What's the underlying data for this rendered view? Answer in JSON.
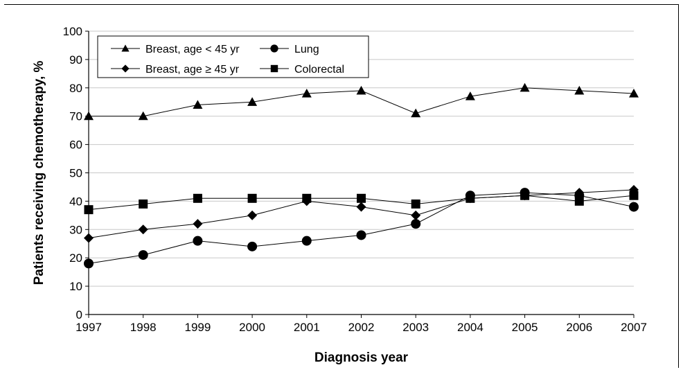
{
  "chart_data": {
    "type": "line",
    "title": "",
    "xlabel": "Diagnosis year",
    "ylabel": "Patients receiving chemotherapy, %",
    "x": [
      "1997",
      "1998",
      "1999",
      "2000",
      "2001",
      "2002",
      "2003",
      "2004",
      "2005",
      "2006",
      "2007"
    ],
    "ylim": [
      0,
      100
    ],
    "yticks": [
      0,
      10,
      20,
      30,
      40,
      50,
      60,
      70,
      80,
      90,
      100
    ],
    "grid": true,
    "legend_position": "top-left",
    "series": [
      {
        "name": "Breast, age < 45 yr",
        "marker": "triangle",
        "values": [
          70,
          70,
          74,
          75,
          78,
          79,
          71,
          77,
          80,
          79,
          78
        ]
      },
      {
        "name": "Breast, age ≥ 45 yr",
        "marker": "diamond",
        "values": [
          27,
          30,
          32,
          35,
          40,
          38,
          35,
          41,
          42,
          43,
          44
        ]
      },
      {
        "name": "Lung",
        "marker": "circle",
        "values": [
          18,
          21,
          26,
          24,
          26,
          28,
          32,
          42,
          43,
          42,
          38
        ]
      },
      {
        "name": "Colorectal",
        "marker": "square",
        "values": [
          37,
          39,
          41,
          41,
          41,
          41,
          39,
          41,
          42,
          40,
          42
        ]
      }
    ]
  }
}
